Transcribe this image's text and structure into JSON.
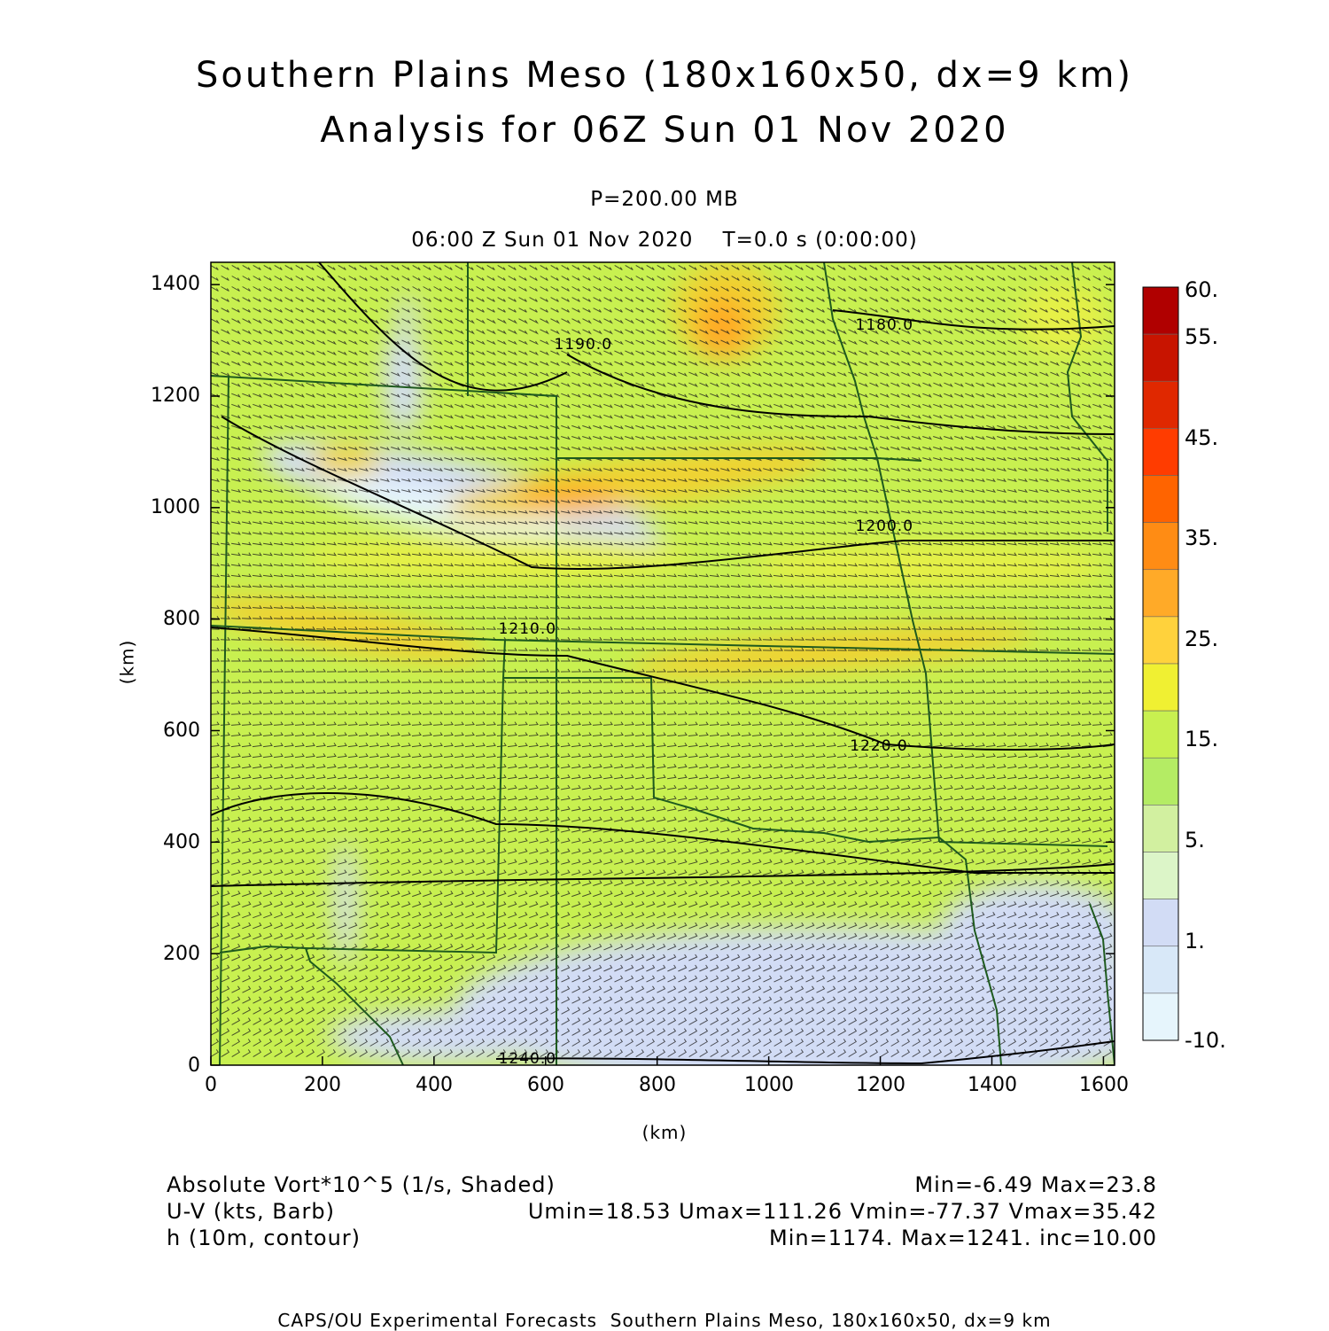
{
  "title": {
    "line1": "Southern Plains Meso (180x160x50, dx=9 km)",
    "line2": "Analysis for 06Z Sun 01 Nov 2020"
  },
  "level": "P=200.00 MB",
  "time_line": "06:00 Z Sun 01 Nov 2020    T=0.0 s (0:00:00)",
  "axes": {
    "x_unit": "(km)",
    "y_unit": "(km)",
    "x_ticks": [
      "0",
      "200",
      "400",
      "600",
      "800",
      "1000",
      "1200",
      "1400",
      "1600"
    ],
    "y_ticks": [
      "0",
      "200",
      "400",
      "600",
      "800",
      "1000",
      "1200",
      "1400"
    ],
    "x_range": [
      0,
      1620
    ],
    "y_range": [
      0,
      1440
    ]
  },
  "colorbar": {
    "labels": [
      "60.",
      "55.",
      "45.",
      "35.",
      "25.",
      "15.",
      "5.",
      "1.",
      "-10."
    ],
    "colors": [
      "#b00000",
      "#c81400",
      "#e02800",
      "#ff3c00",
      "#ff6400",
      "#ff8c14",
      "#ffaa28",
      "#ffd23c",
      "#f0f032",
      "#c8f050",
      "#b4ec64",
      "#d2f0a0",
      "#dcf5c8",
      "#d2dcf5",
      "#d8e8f8",
      "#e6f5fc"
    ]
  },
  "contour_labels": [
    {
      "text": "1180.0",
      "x": 1200,
      "y": 1325
    },
    {
      "text": "1190.0",
      "x": 660,
      "y": 1290
    },
    {
      "text": "1200.0",
      "x": 1200,
      "y": 965
    },
    {
      "text": "1210.0",
      "x": 560,
      "y": 780
    },
    {
      "text": "1220.0",
      "x": 1190,
      "y": 570
    },
    {
      "text": "1240.0",
      "x": 560,
      "y": 10
    }
  ],
  "legend": {
    "left": [
      "Absolute Vort*10^5 (1/s, Shaded)",
      "U-V (kts, Barb)",
      "h (10m, contour)"
    ],
    "right": [
      "Min=-6.49 Max=23.8",
      "Umin=18.53 Umax=111.26 Vmin=-77.37 Vmax=35.42",
      "Min=1174. Max=1241. inc=10.00"
    ]
  },
  "footer": "CAPS/OU Experimental Forecasts  Southern Plains Meso, 180x160x50, dx=9 km",
  "colors": {
    "base_field": "#c8f050",
    "low_field": "#d2dcf5",
    "lowest_field": "#e6f5fc",
    "high_field": "#f0d232",
    "peak_field": "#ffaa28",
    "boundary": "#1e5a1e",
    "contour": "#000000",
    "barb": "#1a1a1a"
  }
}
